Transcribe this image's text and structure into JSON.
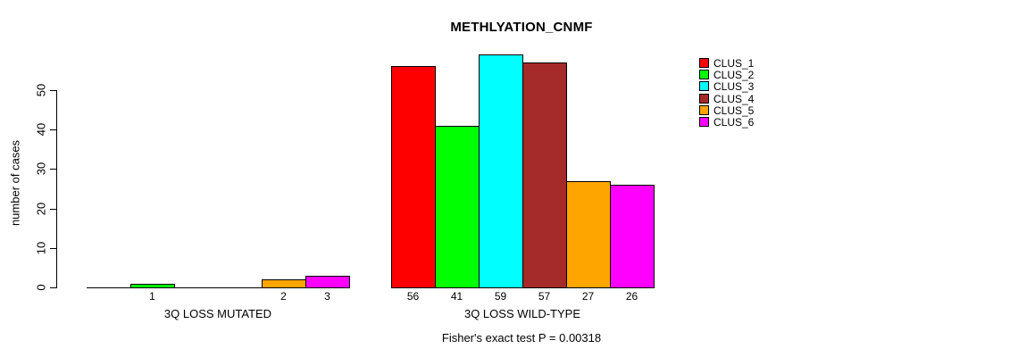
{
  "chart_data": {
    "type": "bar",
    "title": "METHLYATION_CNMF",
    "ylabel": "number of cases",
    "xlabel": "",
    "annotation": "Fisher's exact test P = 0.00318",
    "grid": false,
    "legend_position": "right",
    "yticks": [
      0,
      10,
      20,
      30,
      40,
      50
    ],
    "ylim": [
      0,
      59
    ],
    "clusters": [
      {
        "label": "CLUS_1",
        "color": "#FF0000"
      },
      {
        "label": "CLUS_2",
        "color": "#00FF00"
      },
      {
        "label": "CLUS_3",
        "color": "#00FFFF"
      },
      {
        "label": "CLUS_4",
        "color": "#A52A2A"
      },
      {
        "label": "CLUS_5",
        "color": "#FFA500"
      },
      {
        "label": "CLUS_6",
        "color": "#FF00FF"
      }
    ],
    "series": [
      {
        "name": "3Q LOSS MUTATED",
        "values": [
          0,
          1,
          0,
          0,
          2,
          3
        ],
        "bar_labels": [
          "",
          "1",
          "",
          "",
          "2",
          "3"
        ]
      },
      {
        "name": "3Q LOSS WILD-TYPE",
        "values": [
          56,
          41,
          59,
          57,
          27,
          26
        ],
        "bar_labels": [
          "56",
          "41",
          "59",
          "57",
          "27",
          "26"
        ]
      }
    ]
  }
}
